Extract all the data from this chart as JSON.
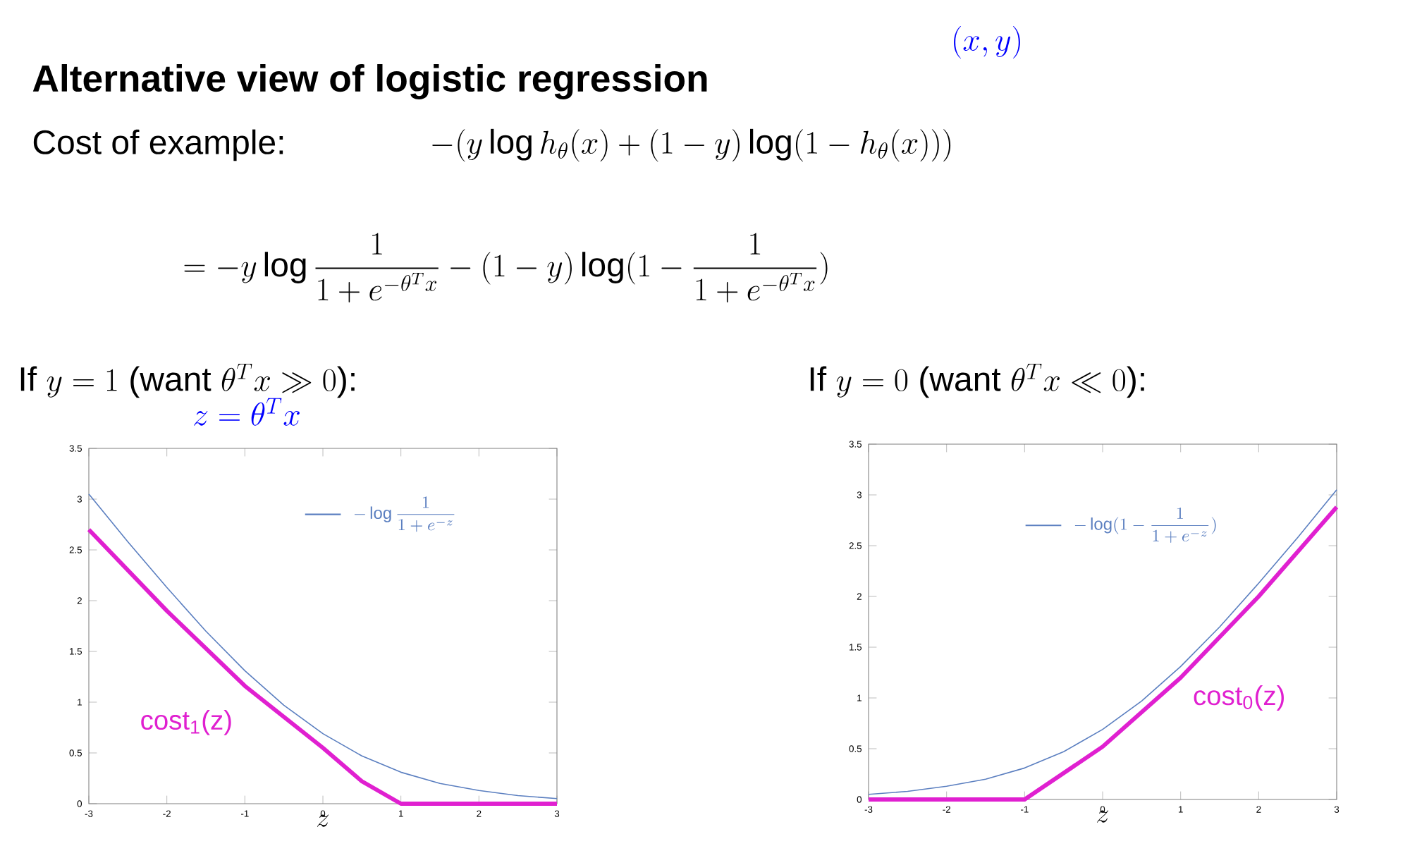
{
  "chart_data": [
    {
      "type": "line",
      "title": "Alternative view of logistic regression",
      "subtitle": "\\text{If } y=1\\ \\text{(want } \\theta^Tx\\gg 0\\text{):}",
      "xlabel": "z",
      "annotations": [
        "Cost of example:",
        "-(y\\log h_\\theta(x)+(1-y)\\log(1-h_\\theta(x)))",
        "=-y\\log\\frac{1}{1+e^{-\\theta^Tx}}-(1-y)\\log(1-\\frac{1}{1+e^{-\\theta^Tx}})",
        "(x,y)",
        "z=\\theta^Tx"
      ],
      "xlim": [
        -3,
        3
      ],
      "xticks": [
        -3,
        -2,
        -1,
        0,
        1,
        2,
        3
      ],
      "ylim": [
        0,
        3.5
      ],
      "yticks": [
        0,
        0.5,
        1,
        1.5,
        2,
        2.5,
        3,
        3.5
      ],
      "series": [
        {
          "name": "-\\log\\frac{1}{1+e^{-z}}",
          "color": "#5b7fc0",
          "x": [
            -3,
            -2.5,
            -2,
            -1.5,
            -1,
            -0.5,
            0,
            0.5,
            1,
            1.5,
            2,
            2.5,
            3
          ],
          "values": [
            3.05,
            2.58,
            2.13,
            1.7,
            1.31,
            0.97,
            0.69,
            0.47,
            0.31,
            0.2,
            0.13,
            0.08,
            0.05
          ]
        },
        {
          "name": "cost$_{1}$(z)",
          "color": "#e020d0",
          "x": [
            -3,
            -2,
            -1,
            0,
            0.5,
            1,
            3
          ],
          "values": [
            2.7,
            1.9,
            1.16,
            0.55,
            0.22,
            0,
            0
          ]
        }
      ]
    },
    {
      "type": "line",
      "subtitle": "\\text{If } y=0\\ \\text{(want } \\theta^Tx\\ll 0\\text{):}",
      "xlabel": "z",
      "xlim": [
        -3,
        3
      ],
      "xticks": [
        -3,
        -2,
        -1,
        0,
        1,
        2,
        3
      ],
      "ylim": [
        0,
        3.5
      ],
      "yticks": [
        0,
        0.5,
        1,
        1.5,
        2,
        2.5,
        3,
        3.5
      ],
      "series": [
        {
          "name": "-\\log(1-\\frac{1}{1+e^{-z}})",
          "color": "#5b7fc0",
          "x": [
            -3,
            -2.5,
            -2,
            -1.5,
            -1,
            -0.5,
            0,
            0.5,
            1,
            1.5,
            2,
            2.5,
            3
          ],
          "values": [
            0.05,
            0.08,
            0.13,
            0.2,
            0.31,
            0.47,
            0.69,
            0.97,
            1.31,
            1.7,
            2.13,
            2.58,
            3.05
          ]
        },
        {
          "name": "cost$_{0}$(z)",
          "color": "#e020d0",
          "x": [
            -3,
            -1,
            0,
            1,
            2,
            3
          ],
          "values": [
            0,
            0,
            0.52,
            1.2,
            2.0,
            2.88
          ]
        }
      ]
    }
  ]
}
